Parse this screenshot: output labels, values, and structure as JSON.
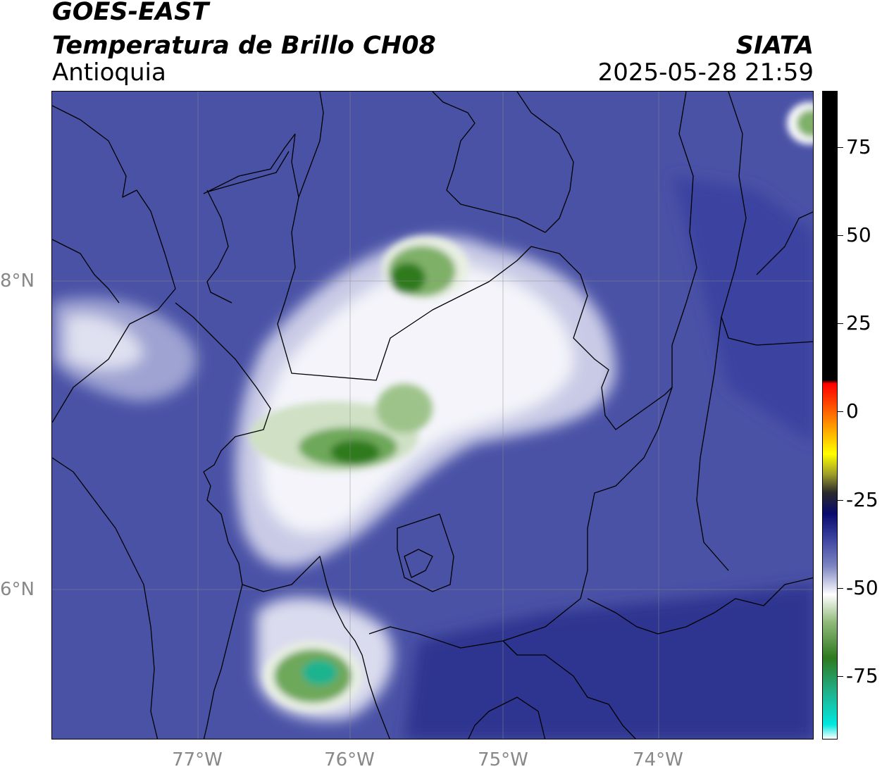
{
  "header": {
    "title_line1": "GOES-EAST",
    "title_line2": "Temperatura de Brillo CH08",
    "region": "Antioquia",
    "organization": "SIATA",
    "timestamp": "2025-05-28 21:59"
  },
  "map": {
    "lon_range": [
      -77.95,
      -72.95
    ],
    "lat_range": [
      4.95,
      9.15
    ],
    "lat_labels": [
      {
        "lat": 8,
        "text": "8°N"
      },
      {
        "lat": 6,
        "text": "6°N"
      }
    ],
    "lon_labels": [
      {
        "lon": -77,
        "text": "77°W"
      },
      {
        "lon": -76,
        "text": "76°W"
      },
      {
        "lon": -75,
        "text": "75°W"
      },
      {
        "lon": -74,
        "text": "74°W"
      }
    ],
    "background_color": "#4a52a6",
    "grid": true
  },
  "colorbar": {
    "range": [
      -93,
      91
    ],
    "ticks": [
      {
        "value": 75,
        "text": "75"
      },
      {
        "value": 50,
        "text": "50"
      },
      {
        "value": 25,
        "text": "25"
      },
      {
        "value": 0,
        "text": "0"
      },
      {
        "value": -25,
        "text": "-25"
      },
      {
        "value": -50,
        "text": "-50"
      },
      {
        "value": -75,
        "text": "-75"
      }
    ],
    "stops": [
      {
        "value": -93,
        "color": "#ffffff"
      },
      {
        "value": -89,
        "color": "#00e8e0"
      },
      {
        "value": -80,
        "color": "#1fb38f"
      },
      {
        "value": -70,
        "color": "#2e7a1e"
      },
      {
        "value": -60,
        "color": "#8fb878"
      },
      {
        "value": -52,
        "color": "#ffffff"
      },
      {
        "value": -44,
        "color": "#7f86c2"
      },
      {
        "value": -36,
        "color": "#3a42a0"
      },
      {
        "value": -29,
        "color": "#0a0a6e"
      },
      {
        "value": -23,
        "color": "#2a2a2a"
      },
      {
        "value": -18,
        "color": "#9a9a2a"
      },
      {
        "value": -12,
        "color": "#ffff00"
      },
      {
        "value": -5,
        "color": "#ffa500"
      },
      {
        "value": 4,
        "color": "#ff3000"
      },
      {
        "value": 8,
        "color": "#ff0000"
      },
      {
        "value": 9,
        "color": "#000000"
      },
      {
        "value": 91,
        "color": "#000000"
      }
    ]
  }
}
